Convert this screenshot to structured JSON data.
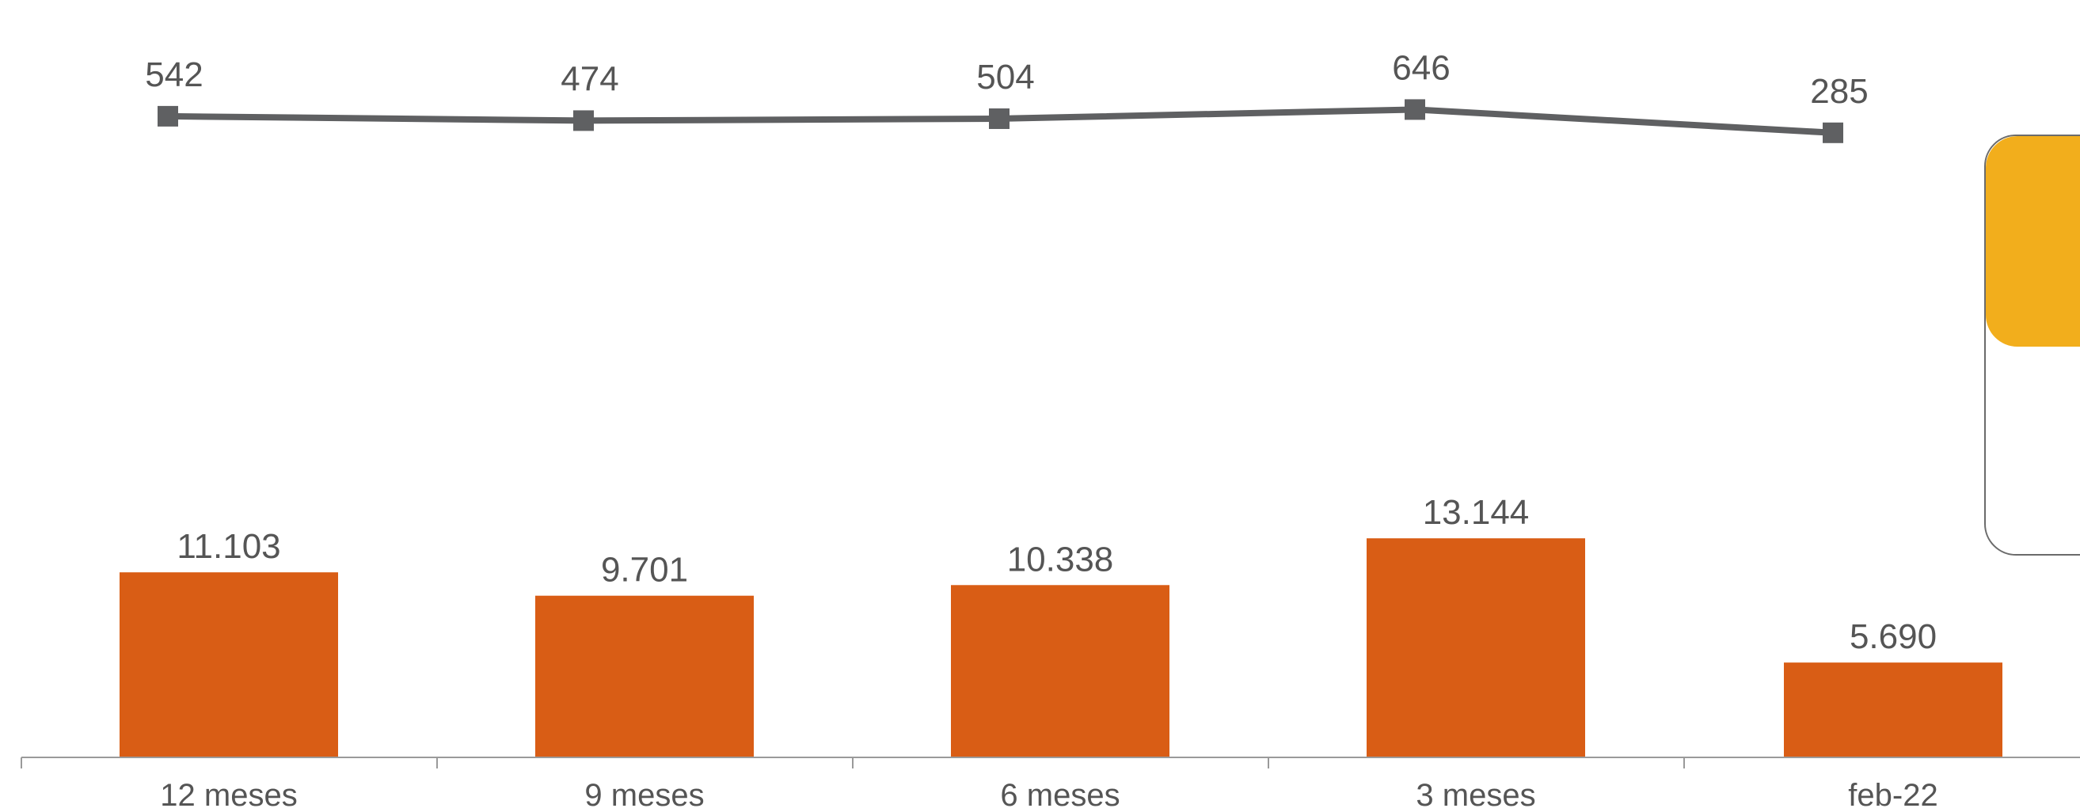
{
  "colors": {
    "bar": "#D95D15",
    "line": "#5F6062",
    "text": "#555555",
    "axis": "#9a9a9a",
    "card_header": "#F2AE1C"
  },
  "chart_data": {
    "type": "bar+line",
    "categories": [
      "12 meses",
      "9 meses",
      "6 meses",
      "3 meses",
      "feb-22"
    ],
    "series": [
      {
        "type": "bar",
        "values": [
          11103,
          9701,
          10338,
          13144,
          5690
        ],
        "labels": [
          "11.103",
          "9.701",
          "10.338",
          "13.144",
          "5.690"
        ]
      },
      {
        "type": "line",
        "values": [
          542,
          474,
          504,
          646,
          285
        ],
        "labels": [
          "542",
          "474",
          "504",
          "646",
          "285"
        ]
      }
    ],
    "title": "",
    "xlabel": "",
    "ylabel": "",
    "grid": false,
    "legend": "none"
  }
}
